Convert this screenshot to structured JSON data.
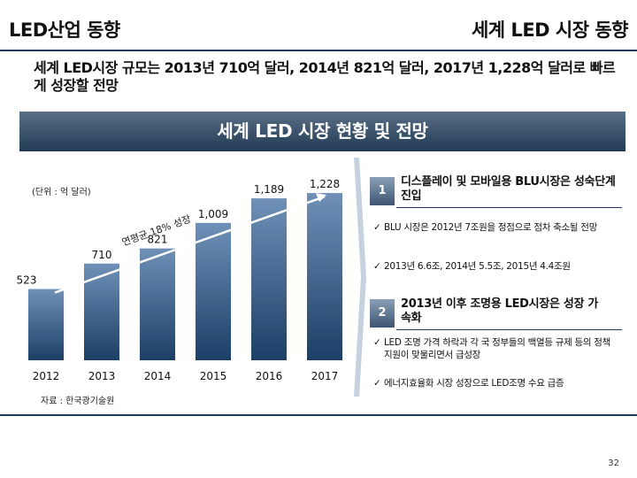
{
  "header": {
    "left_title": "LED산업 동향",
    "right_title": "세계 LED 시장 동향"
  },
  "summary": "세계 LED시장 규모는 2013년 710억 달러, 2014년 821억 달러, 2017년 1,228억 달러로 빠르게 성장할 전망",
  "banner": "세계 LED 시장 현황 및 전망",
  "chart_data": {
    "type": "bar",
    "unit_label": "(단위 : 억 달러)",
    "categories": [
      "2012",
      "2013",
      "2014",
      "2015",
      "2016",
      "2017"
    ],
    "values": [
      523,
      710,
      821,
      1009,
      1189,
      1228
    ],
    "value_labels": [
      "523",
      "710",
      "821",
      "1,009",
      "1,189",
      "1,228"
    ],
    "annotation": "연평균 18% 성장",
    "ylim": [
      0,
      1300
    ],
    "colors": {
      "bar_top": "#6f90b7",
      "bar_bottom": "#1c3f66",
      "trend": "#ffffff",
      "label": "#111111"
    }
  },
  "source": "자료 : 한국광기술원",
  "sections": [
    {
      "number": "1",
      "title": "디스플레이 및 모바일용 BLU시장은 성숙단계 진입",
      "bullets": [
        "BLU 시장은 2012년 7조원을 정점으로 점차 축소될 전망",
        "2013년 6.6조, 2014년 5.5조, 2015년 4.4조원"
      ]
    },
    {
      "number": "2",
      "title": "2013년 이후 조명용 LED시장은 성장 가속화",
      "bullets": [
        "LED 조명 가격 하락과 각 국 정부들의 백열등 규제 등의 정책 지원이 맞물리면서 급성장",
        "에너지효율화 시장 성장으로 LED조명 수요 급증"
      ]
    }
  ],
  "check_mark": "✓",
  "page_number": "32"
}
